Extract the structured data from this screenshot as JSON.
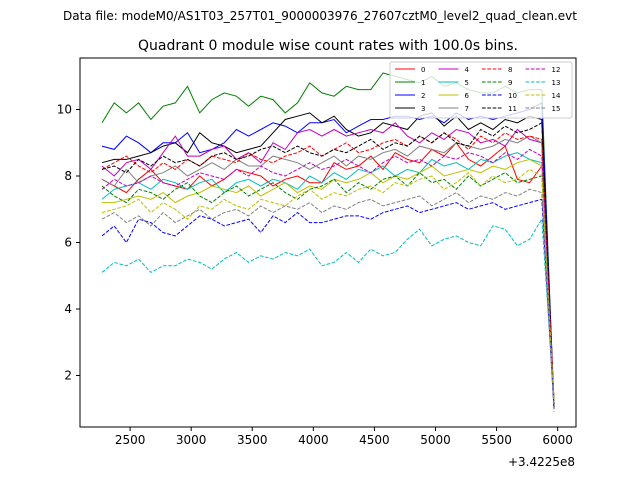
{
  "figure": {
    "suptitle": "Data file: modeM0/AS1T03_257T01_9000003976_27607cztM0_level2_quad_clean.evt",
    "title": "Quadrant 0 module wise count rates with 100.0s bins.",
    "x_offset_label": "+3.4225e8"
  },
  "chart_data": {
    "type": "line",
    "title": "Quadrant 0 module wise count rates with 100.0s bins.",
    "xlabel": "",
    "ylabel": "",
    "x_offset": "+3.4225e8",
    "xlim": [
      2090,
      6150
    ],
    "ylim": [
      0.45,
      11.55
    ],
    "xticks": [
      2500,
      3000,
      3500,
      4000,
      4500,
      5000,
      5500,
      6000
    ],
    "yticks": [
      2,
      4,
      6,
      8,
      10
    ],
    "grid": false,
    "legend": {
      "placement": "top-right",
      "ncol": 4
    },
    "x": [
      2270,
      2370,
      2470,
      2570,
      2670,
      2770,
      2870,
      2970,
      3070,
      3170,
      3270,
      3370,
      3470,
      3570,
      3670,
      3770,
      3870,
      3970,
      4070,
      4170,
      4270,
      4370,
      4470,
      4570,
      4670,
      4770,
      4870,
      4970,
      5070,
      5170,
      5270,
      5370,
      5470,
      5570,
      5670,
      5770,
      5870,
      5970
    ],
    "series": [
      {
        "name": "0",
        "color": "#ff0000",
        "style": "solid",
        "values": [
          7.9,
          7.7,
          7.5,
          7.9,
          8.2,
          7.8,
          7.7,
          7.6,
          8.0,
          7.7,
          7.9,
          8.2,
          8.1,
          8.0,
          7.7,
          7.9,
          8.0,
          7.8,
          7.8,
          8.4,
          8.2,
          8.3,
          8.6,
          8.2,
          8.7,
          8.5,
          8.4,
          8.8,
          8.6,
          9.0,
          8.5,
          8.3,
          8.6,
          8.9,
          7.9,
          7.8,
          8.3,
          1.2
        ]
      },
      {
        "name": "1",
        "color": "#008000",
        "style": "solid",
        "values": [
          9.6,
          10.2,
          9.9,
          10.2,
          9.7,
          10.1,
          10.2,
          10.7,
          9.9,
          10.3,
          10.5,
          10.4,
          10.1,
          10.4,
          10.3,
          9.9,
          10.2,
          10.8,
          10.5,
          10.4,
          10.7,
          10.6,
          10.6,
          11.1,
          11.0,
          10.9,
          10.8,
          11.0,
          10.7,
          10.8,
          10.6,
          10.5,
          10.5,
          10.7,
          10.5,
          10.6,
          10.6,
          1.0
        ]
      },
      {
        "name": "2",
        "color": "#0000ff",
        "style": "solid",
        "values": [
          8.9,
          8.8,
          9.2,
          9.0,
          8.7,
          9.0,
          9.0,
          9.3,
          8.7,
          8.8,
          9.0,
          9.4,
          9.2,
          9.4,
          9.6,
          9.5,
          9.3,
          9.6,
          9.6,
          9.7,
          9.3,
          9.5,
          9.7,
          9.7,
          9.8,
          9.8,
          9.7,
          9.8,
          9.6,
          9.9,
          9.7,
          9.8,
          9.7,
          9.8,
          9.9,
          10.0,
          10.2,
          1.1
        ]
      },
      {
        "name": "3",
        "color": "#000000",
        "style": "solid",
        "values": [
          8.4,
          8.5,
          8.5,
          8.6,
          8.7,
          8.9,
          9.0,
          8.7,
          9.3,
          9.0,
          8.9,
          8.7,
          8.8,
          8.9,
          9.3,
          9.7,
          9.8,
          9.9,
          9.6,
          9.8,
          9.4,
          9.2,
          9.3,
          9.6,
          9.5,
          9.4,
          9.8,
          9.9,
          9.5,
          9.8,
          9.4,
          9.6,
          9.4,
          9.7,
          9.6,
          9.8,
          9.7,
          1.0
        ]
      },
      {
        "name": "4",
        "color": "#bf00bf",
        "style": "solid",
        "values": [
          8.3,
          8.0,
          8.4,
          8.5,
          8.2,
          8.7,
          9.2,
          8.6,
          8.6,
          8.8,
          8.9,
          8.5,
          8.7,
          8.4,
          9.0,
          8.8,
          9.3,
          9.4,
          9.2,
          9.4,
          9.2,
          9.3,
          9.4,
          9.3,
          9.6,
          9.2,
          9.0,
          9.3,
          9.1,
          9.4,
          9.3,
          9.0,
          9.1,
          8.9,
          9.4,
          9.1,
          9.0,
          1.1
        ]
      },
      {
        "name": "5",
        "color": "#00bfbf",
        "style": "solid",
        "values": [
          7.3,
          7.6,
          7.7,
          7.8,
          7.6,
          7.9,
          7.8,
          7.6,
          7.8,
          7.9,
          7.5,
          7.8,
          7.9,
          7.7,
          7.9,
          7.8,
          7.6,
          8.0,
          7.8,
          8.1,
          7.9,
          8.2,
          8.1,
          8.3,
          8.0,
          8.2,
          8.1,
          8.5,
          8.3,
          8.4,
          8.2,
          8.5,
          8.4,
          8.6,
          8.7,
          8.5,
          8.4,
          1.2
        ]
      },
      {
        "name": "6",
        "color": "#bfbf00",
        "style": "solid",
        "values": [
          7.2,
          7.2,
          7.3,
          7.4,
          7.3,
          7.5,
          7.2,
          7.4,
          7.5,
          7.7,
          7.6,
          7.5,
          7.7,
          7.4,
          7.6,
          7.8,
          7.5,
          7.7,
          7.6,
          7.9,
          7.8,
          7.9,
          8.1,
          7.8,
          8.0,
          7.9,
          8.1,
          8.3,
          8.0,
          8.1,
          8.2,
          8.1,
          8.3,
          8.2,
          8.4,
          8.5,
          8.3,
          1.3
        ]
      },
      {
        "name": "7",
        "color": "#808080",
        "style": "solid",
        "values": [
          7.9,
          7.7,
          8.2,
          7.8,
          8.0,
          8.1,
          8.3,
          8.0,
          8.2,
          8.4,
          8.2,
          8.5,
          8.3,
          8.3,
          8.6,
          8.5,
          8.4,
          8.2,
          8.4,
          8.6,
          8.3,
          8.6,
          8.5,
          8.7,
          8.8,
          8.6,
          8.9,
          8.8,
          8.7,
          9.0,
          8.9,
          8.8,
          8.9,
          9.1,
          9.0,
          9.2,
          9.0,
          1.1
        ]
      },
      {
        "name": "8",
        "color": "#ff0000",
        "style": "dashed",
        "values": [
          8.2,
          8.4,
          8.6,
          8.3,
          8.1,
          8.4,
          8.2,
          8.5,
          8.3,
          8.6,
          8.5,
          8.4,
          8.7,
          8.5,
          8.4,
          8.6,
          8.7,
          8.9,
          8.6,
          8.8,
          9.0,
          8.7,
          8.8,
          9.0,
          9.1,
          8.9,
          9.2,
          9.0,
          9.3,
          9.1,
          8.8,
          9.2,
          9.0,
          9.3,
          9.1,
          9.2,
          9.1,
          1.3
        ]
      },
      {
        "name": "9",
        "color": "#008000",
        "style": "dashed",
        "values": [
          7.7,
          7.4,
          7.2,
          7.6,
          7.5,
          7.3,
          7.6,
          7.8,
          7.4,
          7.2,
          7.5,
          7.7,
          7.4,
          7.6,
          7.8,
          7.5,
          7.3,
          7.6,
          7.7,
          7.9,
          7.5,
          7.8,
          7.6,
          7.9,
          8.0,
          7.7,
          8.1,
          7.8,
          7.9,
          7.6,
          8.0,
          7.7,
          7.9,
          8.1,
          7.8,
          7.9,
          8.0,
          1.1
        ]
      },
      {
        "name": "10",
        "color": "#0000ff",
        "style": "dashed",
        "values": [
          6.2,
          6.5,
          6.0,
          6.7,
          6.6,
          6.3,
          6.2,
          6.5,
          6.8,
          6.7,
          6.5,
          6.6,
          6.7,
          6.3,
          6.8,
          6.6,
          6.9,
          6.6,
          6.6,
          6.7,
          6.8,
          6.8,
          6.7,
          6.9,
          7.0,
          7.1,
          6.9,
          7.0,
          7.1,
          7.2,
          7.0,
          7.1,
          7.2,
          7.0,
          7.1,
          7.2,
          7.3,
          1.0
        ]
      },
      {
        "name": "11",
        "color": "#000000",
        "style": "dashed",
        "values": [
          8.2,
          8.3,
          8.1,
          8.5,
          8.3,
          8.6,
          8.4,
          8.5,
          8.3,
          8.6,
          8.7,
          8.5,
          8.6,
          8.8,
          8.9,
          8.7,
          8.9,
          8.7,
          8.6,
          8.8,
          8.7,
          8.9,
          9.1,
          8.8,
          9.0,
          8.9,
          9.2,
          9.0,
          9.3,
          9.0,
          8.9,
          9.4,
          9.2,
          9.5,
          9.3,
          9.4,
          9.6,
          1.1
        ]
      },
      {
        "name": "12",
        "color": "#bf00bf",
        "style": "dashed",
        "values": [
          7.6,
          7.9,
          7.7,
          7.8,
          8.0,
          7.8,
          7.7,
          7.9,
          8.1,
          8.0,
          7.9,
          8.2,
          8.0,
          8.3,
          8.1,
          8.0,
          8.2,
          8.4,
          8.2,
          8.3,
          8.5,
          8.3,
          8.1,
          8.4,
          8.6,
          8.4,
          8.5,
          8.3,
          8.6,
          8.5,
          8.7,
          8.6,
          8.4,
          8.7,
          8.5,
          8.8,
          8.6,
          1.2
        ]
      },
      {
        "name": "13",
        "color": "#00bfbf",
        "style": "dashed",
        "values": [
          5.1,
          5.4,
          5.3,
          5.5,
          5.1,
          5.3,
          5.3,
          5.5,
          5.4,
          5.2,
          5.5,
          5.7,
          5.4,
          5.6,
          5.5,
          5.7,
          5.6,
          5.8,
          5.3,
          5.4,
          5.7,
          5.4,
          5.8,
          5.6,
          5.7,
          6.1,
          6.4,
          5.9,
          6.1,
          6.2,
          6.0,
          5.9,
          6.5,
          6.4,
          5.9,
          6.1,
          6.7,
          1.3
        ]
      },
      {
        "name": "14",
        "color": "#bfbf00",
        "style": "dashed",
        "values": [
          6.9,
          7.0,
          7.1,
          7.3,
          6.9,
          7.2,
          7.0,
          6.7,
          7.1,
          7.0,
          7.3,
          7.1,
          7.0,
          7.3,
          7.2,
          7.1,
          7.4,
          7.6,
          7.3,
          7.5,
          7.4,
          7.6,
          7.7,
          7.5,
          7.8,
          7.7,
          7.9,
          8.0,
          7.6,
          7.8,
          8.1,
          7.7,
          8.0,
          7.8,
          7.9,
          8.2,
          8.0,
          1.2
        ]
      },
      {
        "name": "15",
        "color": "#808080",
        "style": "dashed",
        "values": [
          6.7,
          6.9,
          6.6,
          6.8,
          6.5,
          6.9,
          6.6,
          6.8,
          7.0,
          6.7,
          6.9,
          7.0,
          6.8,
          7.1,
          6.9,
          7.1,
          7.0,
          7.2,
          6.9,
          7.1,
          7.0,
          7.2,
          7.3,
          7.1,
          7.2,
          7.3,
          7.4,
          7.1,
          7.3,
          7.5,
          7.2,
          7.4,
          7.3,
          7.5,
          7.4,
          7.6,
          7.5,
          0.9
        ]
      }
    ]
  }
}
